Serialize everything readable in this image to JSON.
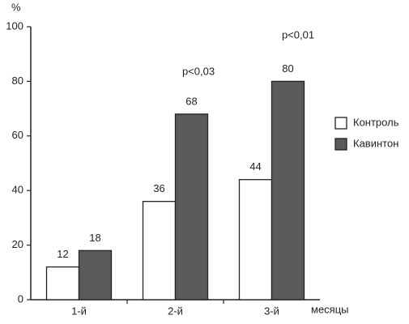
{
  "chart_data": {
    "type": "bar",
    "y_label": "%",
    "x_label": "месяцы",
    "categories": [
      "1-й",
      "2-й",
      "3-й"
    ],
    "series": [
      {
        "name": "Контроль",
        "color": "#ffffff",
        "values": [
          12,
          36,
          44
        ]
      },
      {
        "name": "Кавинтон",
        "color": "#5a5a5a",
        "values": [
          18,
          68,
          80
        ]
      }
    ],
    "annotations": [
      "p<0,03",
      "p<0,01"
    ],
    "ylim": [
      0,
      100
    ],
    "yticks": [
      0,
      20,
      40,
      60,
      80,
      100
    ],
    "grid": false,
    "legend": "right"
  }
}
